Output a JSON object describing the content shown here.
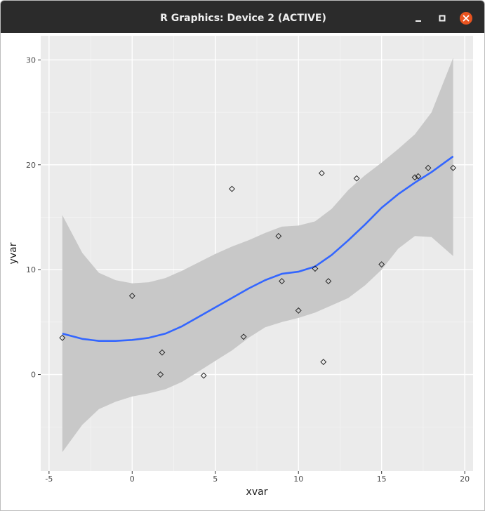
{
  "window": {
    "title": "R Graphics: Device 2 (ACTIVE)",
    "controls": [
      "minimize",
      "maximize",
      "close"
    ],
    "close_color": "#e95420"
  },
  "chart_data": {
    "type": "scatter",
    "xlabel": "xvar",
    "ylabel": "yvar",
    "xlim": [
      -5.5,
      20.5
    ],
    "ylim": [
      -9.2,
      32.3
    ],
    "xticks": [
      -5,
      0,
      5,
      10,
      15,
      20
    ],
    "xtick_labels": [
      "-5",
      "0",
      "5",
      "10",
      "15",
      "20"
    ],
    "yticks": [
      0,
      10,
      20,
      30
    ],
    "ytick_labels": [
      "0",
      "10",
      "20",
      "30"
    ],
    "grid": true,
    "background": "#ebebeb",
    "points": {
      "marker": "open-diamond",
      "x": [
        -4.2,
        0.0,
        1.7,
        1.8,
        4.3,
        6.0,
        6.7,
        8.8,
        9.0,
        10.0,
        11.0,
        11.4,
        11.5,
        11.8,
        13.5,
        15.0,
        17.0,
        17.2,
        17.8,
        19.3
      ],
      "y": [
        3.5,
        7.5,
        0.0,
        2.1,
        -0.1,
        17.7,
        3.6,
        13.2,
        8.9,
        6.1,
        10.1,
        19.2,
        1.2,
        8.9,
        18.7,
        10.5,
        18.8,
        18.9,
        19.7,
        19.7
      ]
    },
    "smooth": {
      "method": "loess",
      "color": "#3366ff",
      "band_color": "#c8c8c8",
      "x": [
        -4.2,
        -3.0,
        -2.0,
        -1.0,
        0.0,
        1.0,
        2.0,
        3.0,
        4.0,
        5.0,
        6.0,
        7.0,
        8.0,
        9.0,
        10.0,
        11.0,
        12.0,
        13.0,
        14.0,
        15.0,
        16.0,
        17.0,
        18.0,
        19.3
      ],
      "y": [
        3.9,
        3.4,
        3.2,
        3.2,
        3.3,
        3.5,
        3.9,
        4.6,
        5.5,
        6.4,
        7.3,
        8.2,
        9.0,
        9.6,
        9.8,
        10.3,
        11.4,
        12.8,
        14.3,
        15.9,
        17.2,
        18.3,
        19.3,
        20.8
      ],
      "ymin": [
        -7.4,
        -4.8,
        -3.3,
        -2.6,
        -2.1,
        -1.8,
        -1.4,
        -0.7,
        0.3,
        1.3,
        2.3,
        3.5,
        4.5,
        5.0,
        5.4,
        5.9,
        6.6,
        7.3,
        8.5,
        10.0,
        12.0,
        13.2,
        13.1,
        11.3
      ],
      "ymax": [
        15.2,
        11.6,
        9.7,
        9.0,
        8.7,
        8.8,
        9.2,
        9.9,
        10.7,
        11.5,
        12.2,
        12.8,
        13.5,
        14.1,
        14.2,
        14.6,
        15.8,
        17.6,
        19.0,
        20.2,
        21.5,
        22.9,
        25.0,
        30.2
      ]
    }
  }
}
